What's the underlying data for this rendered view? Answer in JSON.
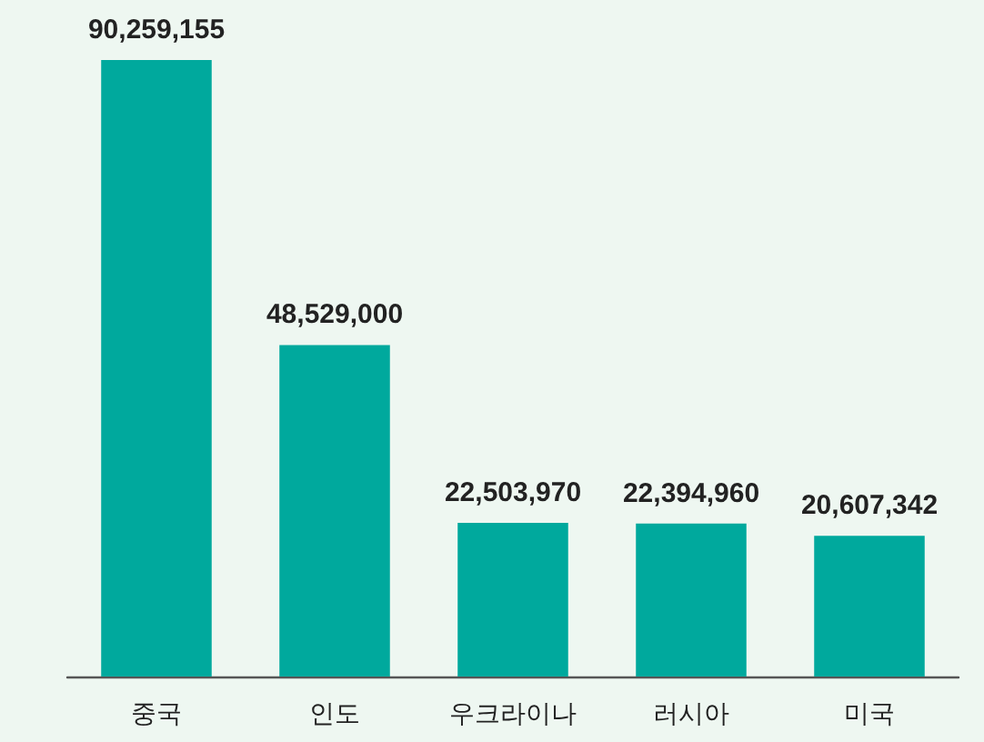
{
  "chart_data": {
    "type": "bar",
    "categories": [
      "중국",
      "인도",
      "우크라이나",
      "러시아",
      "미국"
    ],
    "values": [
      90259155,
      48529000,
      22503970,
      22394960,
      20607342
    ],
    "value_labels": [
      "90,259,155",
      "48,529,000",
      "22,503,970",
      "22,394,960",
      "20,607,342"
    ],
    "color": "#00a99d"
  }
}
